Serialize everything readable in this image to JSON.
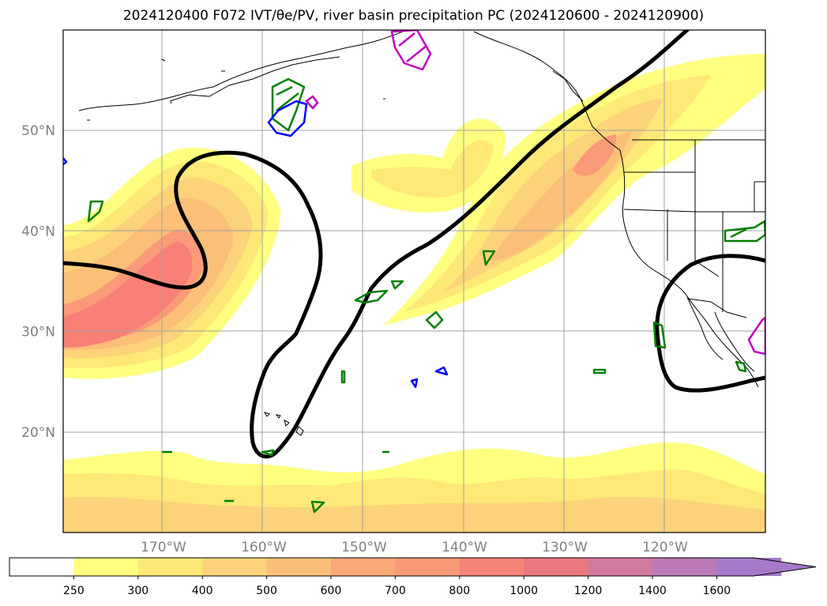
{
  "title": "2024120400 F072 IVT/θe/PV, river basin precipitation PC (2024120600 - 2024120900)",
  "map": {
    "projection": "plate-carree",
    "lon_range": [
      -180,
      -110
    ],
    "lat_range": [
      10,
      60
    ],
    "lat_ticks": [
      {
        "value": 20,
        "label": "20°N"
      },
      {
        "value": 30,
        "label": "30°N"
      },
      {
        "value": 40,
        "label": "40°N"
      },
      {
        "value": 50,
        "label": "50°N"
      }
    ],
    "lon_ticks": [
      {
        "value": -170,
        "label": "170°W"
      },
      {
        "value": -160,
        "label": "160°W"
      },
      {
        "value": -150,
        "label": "150°W"
      },
      {
        "value": -140,
        "label": "140°W"
      },
      {
        "value": -130,
        "label": "130°W"
      },
      {
        "value": -120,
        "label": "120°W"
      }
    ],
    "grid": true,
    "fill_colors": {
      "ivt_250": "#ffff80",
      "ivt_300": "#fde878",
      "ivt_400": "#fcd27a",
      "ivt_500": "#fbbf78",
      "ivt_700": "#fa9a78",
      "ivt_800": "#f88077"
    },
    "contour_colors": {
      "pv": "#000000",
      "precip_green": "#008000",
      "precip_blue": "#0000ff",
      "precip_magenta": "#c000c0"
    }
  },
  "colorbar": {
    "levels": [
      "250",
      "300",
      "400",
      "500",
      "600",
      "700",
      "800",
      "1000",
      "1200",
      "1400",
      "1600"
    ],
    "colors": [
      "#ffffff",
      "#ffff80",
      "#fde878",
      "#fcd27a",
      "#fbbf78",
      "#faa878",
      "#f89a78",
      "#f58478",
      "#e97880",
      "#d279a0",
      "#bc7ab8",
      "#a57ac8"
    ],
    "extend": "max"
  }
}
